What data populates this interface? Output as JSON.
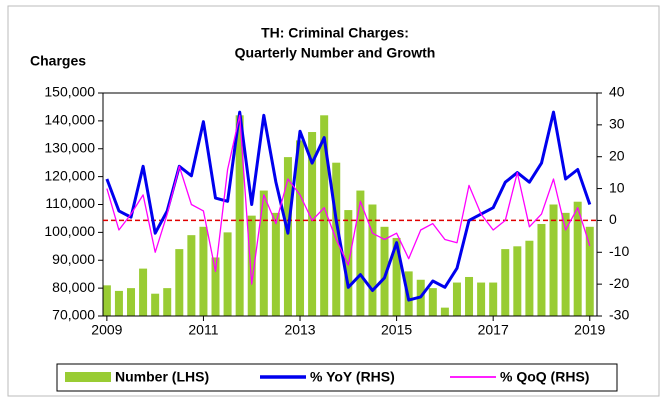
{
  "chart_data": {
    "type": "bar_line_combo",
    "title": [
      "TH: Criminal Charges:",
      "Quarterly Number and Growth"
    ],
    "ylabel": "Charges",
    "x": [
      2009,
      2009.25,
      2009.5,
      2009.75,
      2010,
      2010.25,
      2010.5,
      2010.75,
      2011,
      2011.25,
      2011.5,
      2011.75,
      2012,
      2012.25,
      2012.5,
      2012.75,
      2013,
      2013.25,
      2013.5,
      2013.75,
      2014,
      2014.25,
      2014.5,
      2014.75,
      2015,
      2015.25,
      2015.5,
      2015.75,
      2016,
      2016.25,
      2016.5,
      2016.75,
      2017,
      2017.25,
      2017.5,
      2017.75,
      2018,
      2018.25,
      2018.5,
      2018.75,
      2019
    ],
    "xlim": [
      2008.92,
      2019.15
    ],
    "xticks": [
      2009,
      2011,
      2013,
      2015,
      2017,
      2019
    ],
    "ylim": [
      70000,
      150000
    ],
    "yticks": [
      {
        "value": 70000,
        "label": "70,000"
      },
      {
        "value": 80000,
        "label": "80,000"
      },
      {
        "value": 90000,
        "label": "90,000"
      },
      {
        "value": 100000,
        "label": "100,000"
      },
      {
        "value": 110000,
        "label": "110,000"
      },
      {
        "value": 120000,
        "label": "120,000"
      },
      {
        "value": 130000,
        "label": "130,000"
      },
      {
        "value": 140000,
        "label": "140,000"
      },
      {
        "value": 150000,
        "label": "150,000"
      }
    ],
    "y2lim": [
      -30,
      40
    ],
    "y2ticks": [
      -30,
      -20,
      -10,
      0,
      10,
      20,
      30,
      40
    ],
    "reference_line": {
      "axis": "y2",
      "value": 0,
      "color": "#e00000",
      "style": "dashed"
    },
    "series": [
      {
        "name": "Number (LHS)",
        "type": "bar",
        "color": "#99cc33",
        "values": [
          81000,
          79000,
          80000,
          87000,
          78000,
          80000,
          94000,
          99000,
          102000,
          91000,
          100000,
          142000,
          106000,
          115000,
          107000,
          127000,
          133000,
          136000,
          142000,
          125000,
          108000,
          115000,
          110000,
          102000,
          98000,
          86000,
          83000,
          80000,
          73000,
          82000,
          84000,
          82000,
          82000,
          94000,
          95000,
          97000,
          103000,
          110000,
          107000,
          111000,
          102000
        ]
      },
      {
        "name": "% YoY (RHS)",
        "type": "line",
        "axis": "y2",
        "color": "#0000ee",
        "width": 3,
        "values": [
          13,
          3,
          1,
          17,
          -4,
          3,
          17,
          14,
          31,
          7,
          6,
          34,
          5,
          33,
          12,
          -4,
          28,
          18,
          26,
          0,
          -21,
          -17,
          -22,
          -18,
          -7,
          -25,
          -24,
          -19,
          -21,
          -15,
          0,
          2,
          4,
          12,
          15,
          12,
          18,
          34,
          13,
          16,
          5
        ]
      },
      {
        "name": "% QoQ (RHS)",
        "type": "line",
        "axis": "y2",
        "color": "#ff00ff",
        "width": 1.3,
        "values": [
          10,
          -3,
          2,
          8,
          -10,
          2,
          17,
          5,
          3,
          -16,
          16,
          33,
          -20,
          8,
          -1,
          13,
          8,
          0,
          4,
          -6,
          -14,
          6,
          -4,
          -6,
          -4,
          -12,
          -3,
          -1,
          -6,
          -7,
          11,
          2,
          -3,
          0,
          15,
          -2,
          2,
          13,
          -3,
          4,
          -8
        ]
      }
    ]
  }
}
